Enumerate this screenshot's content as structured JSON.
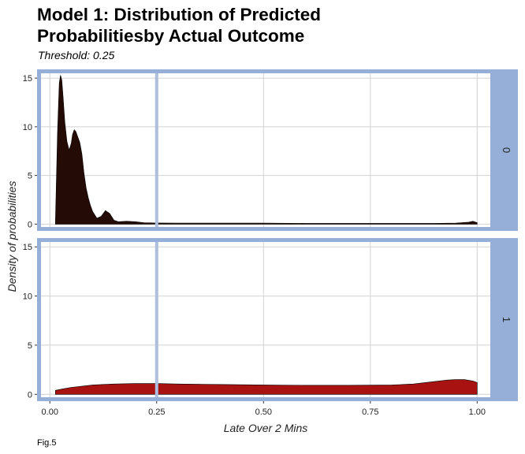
{
  "chart_data": {
    "type": "area",
    "title": "Model 1: Distribution of Predicted Probabilitiesby Actual Outcome",
    "subtitle": "Threshold: 0.25",
    "caption": "Fig.5",
    "xlabel": "Late Over 2 Mins",
    "ylabel": "Density of probabilities",
    "xlim": [
      -0.03,
      1.04
    ],
    "ylim": [
      -0.7,
      15.9
    ],
    "x_ticks": [
      0.0,
      0.25,
      0.5,
      0.75,
      1.0
    ],
    "x_tick_labels": [
      "0.00",
      "0.25",
      "0.50",
      "0.75",
      "1.00"
    ],
    "y_ticks": [
      0,
      5,
      10,
      15
    ],
    "y_tick_labels": [
      "0",
      "5",
      "10",
      "15"
    ],
    "threshold": 0.25,
    "grid": true,
    "colors": {
      "frame": "#95afd8",
      "threshold": "#aebede",
      "grid": "#d2d2d2",
      "facet_0_fill": "#250b05",
      "facet_1_fill": "#a81210"
    },
    "facets": [
      {
        "label": "0",
        "x": [
          0.013,
          0.018,
          0.022,
          0.025,
          0.028,
          0.031,
          0.035,
          0.04,
          0.045,
          0.05,
          0.053,
          0.057,
          0.061,
          0.065,
          0.07,
          0.075,
          0.08,
          0.085,
          0.09,
          0.095,
          0.1,
          0.11,
          0.12,
          0.13,
          0.14,
          0.15,
          0.16,
          0.18,
          0.2,
          0.22,
          0.25,
          0.3,
          0.35,
          0.4,
          0.5,
          0.6,
          0.7,
          0.8,
          0.9,
          0.95,
          0.98,
          0.99,
          1.0
        ],
        "y": [
          0.2,
          9.5,
          14.5,
          15.3,
          14.8,
          13.0,
          10.5,
          8.5,
          7.6,
          8.3,
          9.2,
          9.7,
          9.5,
          9.0,
          8.4,
          7.2,
          5.2,
          3.7,
          2.7,
          1.9,
          1.3,
          0.6,
          0.8,
          1.4,
          1.1,
          0.4,
          0.25,
          0.3,
          0.25,
          0.15,
          0.12,
          0.1,
          0.1,
          0.1,
          0.1,
          0.08,
          0.08,
          0.08,
          0.08,
          0.1,
          0.2,
          0.3,
          0.15
        ]
      },
      {
        "label": "1",
        "x": [
          0.013,
          0.03,
          0.05,
          0.08,
          0.1,
          0.15,
          0.2,
          0.25,
          0.3,
          0.4,
          0.5,
          0.6,
          0.7,
          0.8,
          0.85,
          0.9,
          0.93,
          0.95,
          0.97,
          0.99,
          1.0
        ],
        "y": [
          0.4,
          0.55,
          0.7,
          0.85,
          0.95,
          1.05,
          1.1,
          1.1,
          1.05,
          1.0,
          0.95,
          0.92,
          0.92,
          0.95,
          1.05,
          1.3,
          1.45,
          1.5,
          1.5,
          1.35,
          1.2
        ]
      }
    ]
  }
}
